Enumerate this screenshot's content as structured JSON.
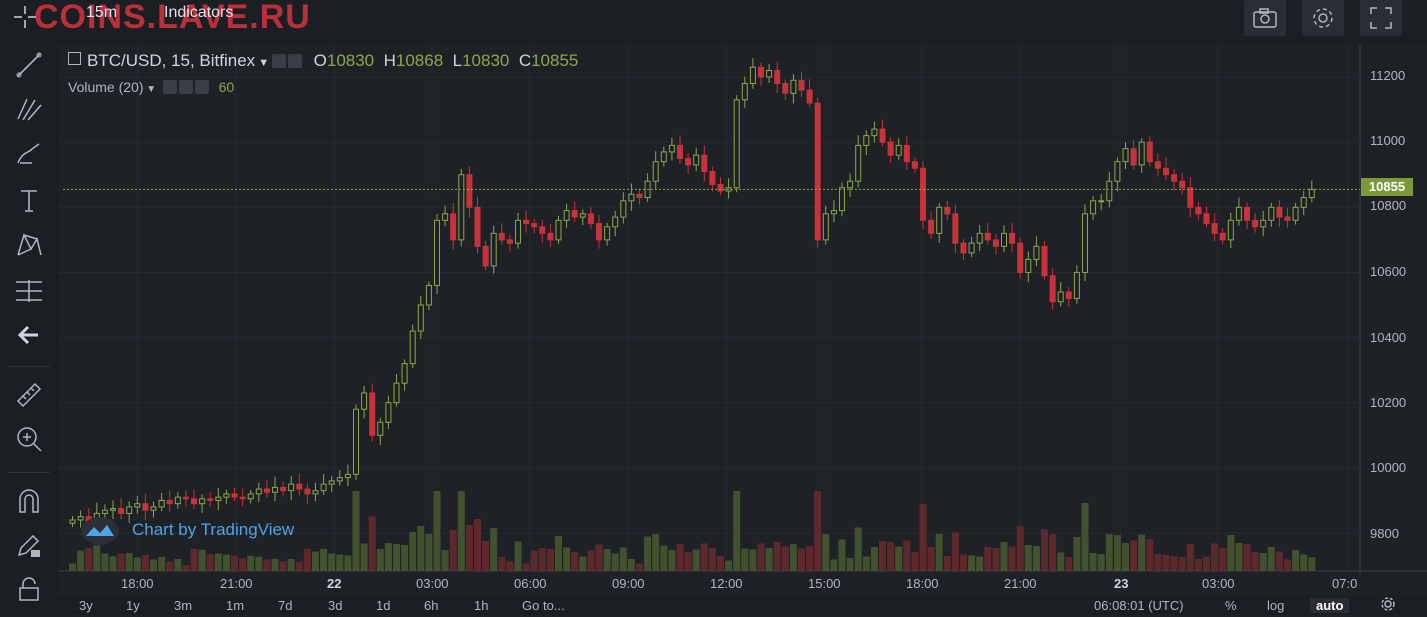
{
  "watermark": "COINS.LAVE.RU",
  "toolbar": {
    "interval": "15m",
    "indicators": "Indicators"
  },
  "icons": {
    "camera": "camera-icon",
    "settings": "gear-icon",
    "fullscreen": "fullscreen-icon"
  },
  "legend": {
    "symbol": "BTC/USD, 15, Bitfinex",
    "o_label": "O",
    "o_value": "10830",
    "h_label": "H",
    "h_value": "10868",
    "l_label": "L",
    "l_value": "10830",
    "c_label": "C",
    "c_value": "10855",
    "volume_label": "Volume (20)",
    "volume_value": "60"
  },
  "price_axis": [
    "11200",
    "11000",
    "10800",
    "10600",
    "10400",
    "10200",
    "10000",
    "9800"
  ],
  "last_price": "10855",
  "time_axis": [
    "18:00",
    "21:00",
    "22",
    "03:00",
    "06:00",
    "09:00",
    "12:00",
    "15:00",
    "18:00",
    "21:00",
    "23",
    "03:00",
    "07:0"
  ],
  "branding": "Chart by TradingView",
  "ranges": [
    "3y",
    "1y",
    "3m",
    "1m",
    "7d",
    "3d",
    "1d",
    "6h",
    "1h",
    "Go to..."
  ],
  "status": {
    "clock": "06:08:01 (UTC)",
    "percent": "%",
    "log": "log",
    "auto": "auto"
  },
  "colors": {
    "up": "#8aa84a",
    "down": "#c8323a",
    "bg": "#1e2227",
    "last_price_bg": "#7c9a3a"
  },
  "chart_data": {
    "type": "candlestick",
    "symbol": "BTC/USD",
    "exchange": "Bitfinex",
    "interval": "15",
    "ylim": [
      9680,
      11280
    ],
    "grid": true,
    "closes": [
      9840,
      9850,
      9830,
      9860,
      9870,
      9875,
      9860,
      9880,
      9890,
      9870,
      9880,
      9900,
      9890,
      9910,
      9905,
      9890,
      9905,
      9900,
      9910,
      9920,
      9910,
      9905,
      9920,
      9935,
      9925,
      9940,
      9930,
      9950,
      9935,
      9920,
      9930,
      9950,
      9960,
      9970,
      9980,
      10180,
      10230,
      10100,
      10140,
      10200,
      10260,
      10320,
      10420,
      10500,
      10560,
      10760,
      10780,
      10700,
      10900,
      10800,
      10680,
      10620,
      10720,
      10700,
      10690,
      10760,
      10750,
      10740,
      10720,
      10700,
      10760,
      10790,
      10770,
      10780,
      10750,
      10700,
      10740,
      10770,
      10820,
      10840,
      10830,
      10880,
      10940,
      10970,
      10990,
      10950,
      10930,
      10960,
      10910,
      10870,
      10850,
      10860,
      11130,
      11180,
      11230,
      11200,
      11220,
      11180,
      11150,
      11190,
      11160,
      11120,
      10700,
      10780,
      10790,
      10860,
      10880,
      10990,
      11020,
      11040,
      11000,
      10960,
      10990,
      10940,
      10920,
      10760,
      10720,
      10800,
      10780,
      10690,
      10660,
      10690,
      10720,
      10700,
      10680,
      10720,
      10690,
      10600,
      10640,
      10680,
      10590,
      10510,
      10540,
      10520,
      10600,
      10780,
      10820,
      10820,
      10880,
      10940,
      10980,
      10930,
      11000,
      10940,
      10920,
      10900,
      10880,
      10860,
      10800,
      10780,
      10750,
      10720,
      10700,
      10760,
      10800,
      10760,
      10740,
      10760,
      10800,
      10770,
      10760,
      10800,
      10830,
      10855
    ]
  }
}
